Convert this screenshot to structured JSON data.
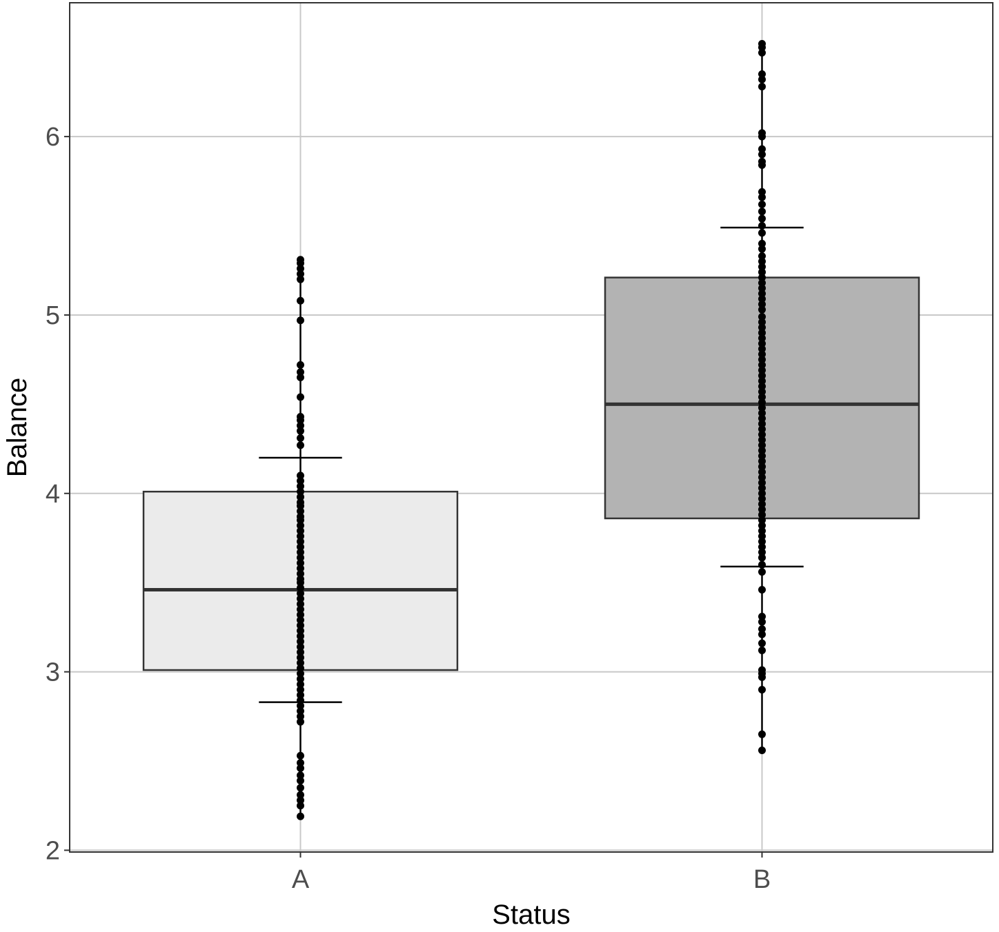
{
  "chart_data": {
    "type": "box",
    "xlabel": "Status",
    "ylabel": "Balance",
    "categories": [
      "A",
      "B"
    ],
    "ylim": [
      1.99,
      6.75
    ],
    "yticks": [
      2,
      3,
      4,
      5,
      6
    ],
    "grid": true,
    "boxes": [
      {
        "category": "A",
        "q1": 3.01,
        "median": 3.46,
        "q3": 4.01,
        "error_low": 2.83,
        "error_high": 4.2,
        "whisker_low": 2.19,
        "whisker_high": 5.31,
        "fill": "#ebebeb",
        "points": [
          5.31,
          5.29,
          5.26,
          5.23,
          5.2,
          5.08,
          4.97,
          4.72,
          4.68,
          4.65,
          4.54,
          4.43,
          4.41,
          4.38,
          4.35,
          4.31,
          4.27,
          4.1,
          4.07,
          4.04,
          4.01,
          3.98,
          3.95,
          3.93,
          3.9,
          3.87,
          3.85,
          3.82,
          3.79,
          3.76,
          3.73,
          3.7,
          3.67,
          3.64,
          3.61,
          3.58,
          3.55,
          3.52,
          3.5,
          3.47,
          3.44,
          3.41,
          3.38,
          3.35,
          3.32,
          3.29,
          3.26,
          3.23,
          3.2,
          3.17,
          3.14,
          3.11,
          3.08,
          3.05,
          3.02,
          2.99,
          2.96,
          2.93,
          2.9,
          2.87,
          2.84,
          2.81,
          2.78,
          2.75,
          2.72,
          2.53,
          2.49,
          2.46,
          2.42,
          2.39,
          2.35,
          2.31,
          2.28,
          2.25,
          2.19
        ]
      },
      {
        "category": "B",
        "q1": 3.86,
        "median": 4.5,
        "q3": 5.21,
        "error_low": 3.59,
        "error_high": 5.49,
        "whisker_low": 2.56,
        "whisker_high": 6.52,
        "fill": "#b3b3b3",
        "points": [
          6.52,
          6.5,
          6.47,
          6.35,
          6.32,
          6.28,
          6.02,
          6.0,
          5.93,
          5.9,
          5.86,
          5.84,
          5.69,
          5.66,
          5.62,
          5.58,
          5.54,
          5.5,
          5.46,
          5.4,
          5.37,
          5.33,
          5.3,
          5.27,
          5.24,
          5.21,
          5.18,
          5.15,
          5.12,
          5.09,
          5.06,
          5.03,
          4.99,
          4.96,
          4.93,
          4.9,
          4.87,
          4.84,
          4.81,
          4.78,
          4.75,
          4.72,
          4.69,
          4.66,
          4.63,
          4.6,
          4.57,
          4.54,
          4.51,
          4.48,
          4.45,
          4.42,
          4.39,
          4.36,
          4.33,
          4.3,
          4.27,
          4.24,
          4.21,
          4.18,
          4.15,
          4.12,
          4.09,
          4.06,
          4.03,
          4.0,
          3.97,
          3.94,
          3.91,
          3.88,
          3.85,
          3.82,
          3.79,
          3.76,
          3.73,
          3.7,
          3.67,
          3.64,
          3.6,
          3.56,
          3.46,
          3.31,
          3.28,
          3.24,
          3.21,
          3.16,
          3.12,
          3.01,
          2.99,
          2.97,
          2.9,
          2.65,
          2.56
        ]
      }
    ]
  }
}
